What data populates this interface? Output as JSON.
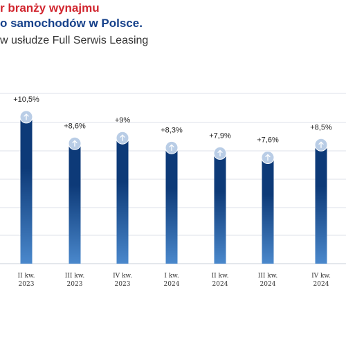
{
  "header": {
    "title_line1": "r branży wynajmu",
    "title_line2": "o samochodów w Polsce.",
    "subtitle": "w usłudze Full Serwis Leasing"
  },
  "colors": {
    "title_red": "#d1262f",
    "title_blue": "#15408a",
    "bar_top": "#0d3a78",
    "bar_bottom": "#4a88cc",
    "marker": "#b9cde6",
    "grid": "#dde2ea"
  },
  "chart_data": {
    "type": "bar",
    "categories": [
      [
        "II kw.",
        "2023"
      ],
      [
        "III kw.",
        "2023"
      ],
      [
        "IV kw.",
        "2023"
      ],
      [
        "I kw.",
        "2024"
      ],
      [
        "II kw.",
        "2024"
      ],
      [
        "III kw.",
        "2024"
      ],
      [
        "IV kw.",
        "2024"
      ]
    ],
    "values": [
      10.5,
      8.6,
      9.0,
      8.3,
      7.9,
      7.6,
      8.5
    ],
    "data_labels": [
      "+10,5%",
      "+8,6%",
      "+9%",
      "+8,3%",
      "+7,9%",
      "+7,6%",
      "+8,5%"
    ],
    "marker_icon": "arrow-up-icon",
    "ylim": [
      0,
      12
    ],
    "grid": true,
    "legend": "none"
  }
}
